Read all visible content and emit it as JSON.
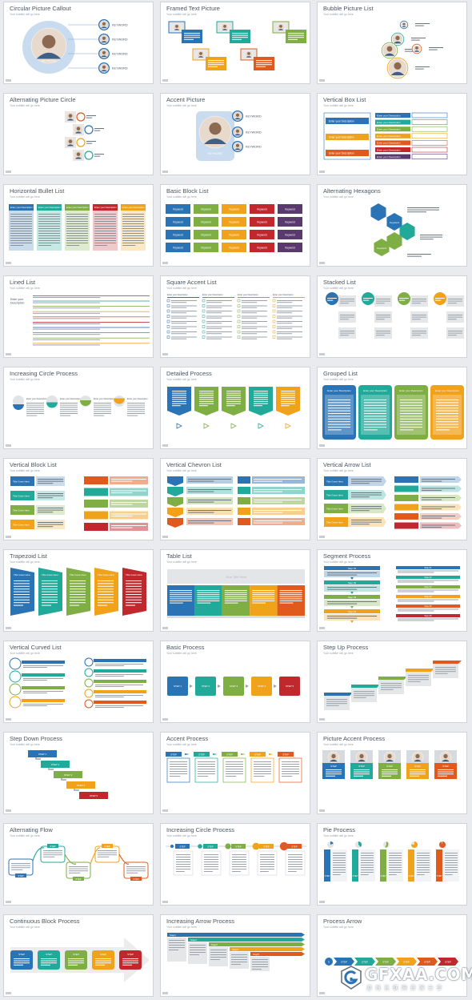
{
  "slides": [
    {
      "title": "Circular Picture Callout",
      "kind": "circle-callout"
    },
    {
      "title": "Framed Text Picture",
      "kind": "framed-text"
    },
    {
      "title": "Bubble Picture List",
      "kind": "bubble-list"
    },
    {
      "title": "Alternating Picture Circle",
      "kind": "alt-picture-circle"
    },
    {
      "title": "Accent Picture",
      "kind": "accent-picture"
    },
    {
      "title": "Vertical Box List",
      "kind": "vertical-box-list"
    },
    {
      "title": "Horizontal Bullet List",
      "kind": "horizontal-bullet"
    },
    {
      "title": "Basic Block List",
      "kind": "basic-block"
    },
    {
      "title": "Alternating Hexagons",
      "kind": "hexagons"
    },
    {
      "title": "Lined List",
      "kind": "lined-list"
    },
    {
      "title": "Square Accent List",
      "kind": "square-accent"
    },
    {
      "title": "Stacked List",
      "kind": "stacked-list"
    },
    {
      "title": "Increasing Circle Process",
      "kind": "increasing-circle"
    },
    {
      "title": "Detailed Process",
      "kind": "detailed-process"
    },
    {
      "title": "Grouped List",
      "kind": "grouped-list"
    },
    {
      "title": "Vertical Block List",
      "kind": "vertical-block"
    },
    {
      "title": "Vertical Chevron List",
      "kind": "vertical-chevron"
    },
    {
      "title": "Vertical Arrow List",
      "kind": "vertical-arrow"
    },
    {
      "title": "Trapezoid List",
      "kind": "trapezoid"
    },
    {
      "title": "Table List",
      "kind": "table-list"
    },
    {
      "title": "Segment Process",
      "kind": "segment-process"
    },
    {
      "title": "Vertical Curved List",
      "kind": "vertical-curved"
    },
    {
      "title": "Basic Process",
      "kind": "basic-process"
    },
    {
      "title": "Step Up Process",
      "kind": "step-up"
    },
    {
      "title": "Step Down Process",
      "kind": "step-down"
    },
    {
      "title": "Accent Process",
      "kind": "accent-process"
    },
    {
      "title": "Picture Accent Process",
      "kind": "picture-accent"
    },
    {
      "title": "Alternating Flow",
      "kind": "alternating-flow"
    },
    {
      "title": "Increasing Circle Process",
      "kind": "increasing-circle-2"
    },
    {
      "title": "Pie Process",
      "kind": "pie-process"
    },
    {
      "title": "Continuous Block Process",
      "kind": "continuous-block"
    },
    {
      "title": "Increasing Arrow Process",
      "kind": "increasing-arrow"
    },
    {
      "title": "Process Arrow",
      "kind": "process-arrow"
    }
  ],
  "subtitle_text": "Your subtitle will go here",
  "keyword": "KEYWORD",
  "block_keyword": "Keyword",
  "desc_label": "Enter your Description",
  "step_label": "STEP",
  "watermark": {
    "text": "GFXAA.COM",
    "sub": "游 戏 互 联 网 资 源 分 享"
  },
  "colors": [
    "#2a73b5",
    "#21a99a",
    "#7fae45",
    "#f0a21b",
    "#e05a1e",
    "#c0282e",
    "#5a3a6e"
  ]
}
